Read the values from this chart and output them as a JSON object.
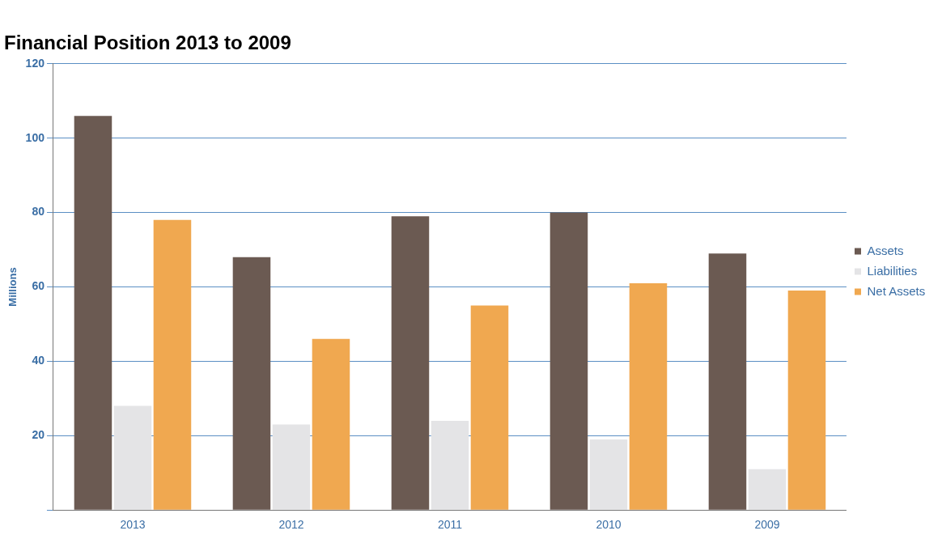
{
  "chart_data": {
    "type": "bar",
    "title": "Financial Position 2013 to 2009",
    "ylabel": "Millions",
    "categories": [
      "2013",
      "2012",
      "2011",
      "2010",
      "2009"
    ],
    "series": [
      {
        "name": "Assets",
        "color": "#6b5a52",
        "values": [
          106,
          68,
          79,
          80,
          69
        ]
      },
      {
        "name": "Liabilities",
        "color": "#e4e4e6",
        "values": [
          28,
          23,
          24,
          19,
          11
        ]
      },
      {
        "name": "Net Assets",
        "color": "#f0a850",
        "values": [
          78,
          46,
          55,
          61,
          59
        ]
      }
    ],
    "ylim": [
      0,
      120
    ],
    "yticks": [
      {
        "value": 0,
        "label": null
      },
      20,
      40,
      60,
      80,
      100,
      120
    ],
    "grid": "y",
    "legend": "right"
  }
}
